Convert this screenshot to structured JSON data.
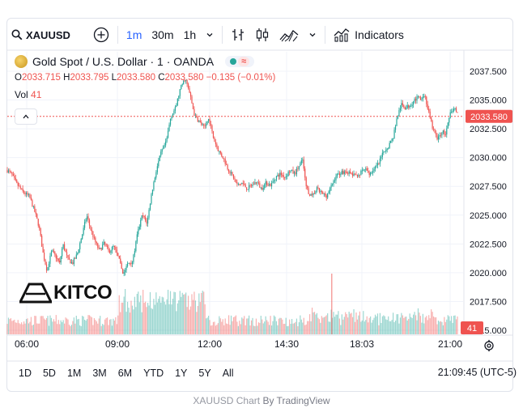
{
  "toolbar": {
    "symbol": "XAUUSD",
    "intervals": [
      "1m",
      "30m",
      "1h"
    ],
    "active_interval": "1m",
    "indicators_label": "Indicators"
  },
  "legend": {
    "title": "Gold Spot / U.S. Dollar · 1 · OANDA",
    "o_label": "O",
    "o_value": "2033.715",
    "h_label": "H",
    "h_value": "2033.795",
    "l_label": "L",
    "l_value": "2033.580",
    "c_label": "C",
    "c_value": "2033.580",
    "change": "−0.135 (−0.01%)",
    "vol_label": "Vol",
    "vol_value": "41"
  },
  "logo": {
    "text": "KITCO"
  },
  "bottom": {
    "ranges": [
      "1D",
      "5D",
      "1M",
      "3M",
      "6M",
      "YTD",
      "1Y",
      "5Y",
      "All"
    ],
    "clock": "21:09:45 (UTC-5)"
  },
  "credit": {
    "prefix": "XAUUSD Chart",
    "suffix": "By TradingView"
  },
  "colors": {
    "up": "#26a69a",
    "down": "#ef5350",
    "accent": "#2962ff",
    "price_line": "#ef5350"
  },
  "chart_data": {
    "type": "candlestick",
    "symbol": "XAUUSD",
    "y_ticks": [
      "2037.500",
      "2035.000",
      "2032.500",
      "2030.000",
      "2027.500",
      "2025.000",
      "2022.500",
      "2020.000",
      "2017.500",
      "2015.000"
    ],
    "ylim": [
      2014.9,
      2038.7
    ],
    "x_ticks": [
      "06:00",
      "09:00",
      "12:00",
      "14:30",
      "18:03",
      "21:00"
    ],
    "last_price": "2033.580",
    "last_volume": "41",
    "price_path": [
      [
        0,
        2028.9
      ],
      [
        5,
        2028.6
      ],
      [
        12,
        2027.7
      ],
      [
        20,
        2027.0
      ],
      [
        28,
        2026.6
      ],
      [
        35,
        2025.2
      ],
      [
        40,
        2024.0
      ],
      [
        45,
        2021.7
      ],
      [
        50,
        2020.2
      ],
      [
        56,
        2021.9
      ],
      [
        62,
        2021.3
      ],
      [
        66,
        2020.8
      ],
      [
        70,
        2022.5
      ],
      [
        76,
        2021.2
      ],
      [
        82,
        2020.8
      ],
      [
        88,
        2021.6
      ],
      [
        95,
        2023.5
      ],
      [
        100,
        2025.0
      ],
      [
        104,
        2024.0
      ],
      [
        110,
        2022.8
      ],
      [
        116,
        2021.9
      ],
      [
        122,
        2022.6
      ],
      [
        128,
        2021.8
      ],
      [
        134,
        2022.3
      ],
      [
        140,
        2021.3
      ],
      [
        146,
        2019.9
      ],
      [
        152,
        2020.8
      ],
      [
        158,
        2021.0
      ],
      [
        164,
        2023.4
      ],
      [
        170,
        2025.0
      ],
      [
        176,
        2024.3
      ],
      [
        182,
        2027.0
      ],
      [
        188,
        2029.0
      ],
      [
        194,
        2030.5
      ],
      [
        200,
        2031.3
      ],
      [
        206,
        2033.6
      ],
      [
        212,
        2034.3
      ],
      [
        218,
        2036.0
      ],
      [
        224,
        2036.9
      ],
      [
        230,
        2035.5
      ],
      [
        236,
        2033.6
      ],
      [
        242,
        2033.1
      ],
      [
        248,
        2032.6
      ],
      [
        254,
        2033.4
      ],
      [
        260,
        2031.6
      ],
      [
        266,
        2030.6
      ],
      [
        272,
        2030.0
      ],
      [
        278,
        2029.0
      ],
      [
        284,
        2028.4
      ],
      [
        290,
        2027.6
      ],
      [
        296,
        2027.8
      ],
      [
        302,
        2027.3
      ],
      [
        308,
        2027.6
      ],
      [
        314,
        2027.9
      ],
      [
        320,
        2027.3
      ],
      [
        326,
        2027.8
      ],
      [
        332,
        2027.6
      ],
      [
        338,
        2028.3
      ],
      [
        344,
        2028.6
      ],
      [
        350,
        2028.3
      ],
      [
        356,
        2028.9
      ],
      [
        362,
        2028.6
      ],
      [
        368,
        2029.3
      ],
      [
        372,
        2029.8
      ],
      [
        376,
        2027.6
      ],
      [
        380,
        2026.9
      ],
      [
        384,
        2026.6
      ],
      [
        390,
        2027.3
      ],
      [
        396,
        2026.9
      ],
      [
        402,
        2026.7
      ],
      [
        408,
        2027.5
      ],
      [
        414,
        2028.4
      ],
      [
        420,
        2028.7
      ],
      [
        426,
        2028.8
      ],
      [
        432,
        2028.6
      ],
      [
        438,
        2028.4
      ],
      [
        444,
        2028.6
      ],
      [
        450,
        2029.0
      ],
      [
        456,
        2028.6
      ],
      [
        462,
        2029.0
      ],
      [
        468,
        2029.5
      ],
      [
        474,
        2030.5
      ],
      [
        480,
        2031.0
      ],
      [
        486,
        2031.8
      ],
      [
        490,
        2033.2
      ],
      [
        496,
        2034.6
      ],
      [
        502,
        2034.3
      ],
      [
        508,
        2034.6
      ],
      [
        514,
        2035.1
      ],
      [
        520,
        2035.2
      ],
      [
        526,
        2035.4
      ],
      [
        530,
        2034.1
      ],
      [
        536,
        2032.5
      ],
      [
        542,
        2031.6
      ],
      [
        548,
        2032.3
      ],
      [
        552,
        2032.0
      ],
      [
        558,
        2033.8
      ],
      [
        564,
        2034.3
      ],
      [
        568,
        2033.58
      ]
    ]
  }
}
